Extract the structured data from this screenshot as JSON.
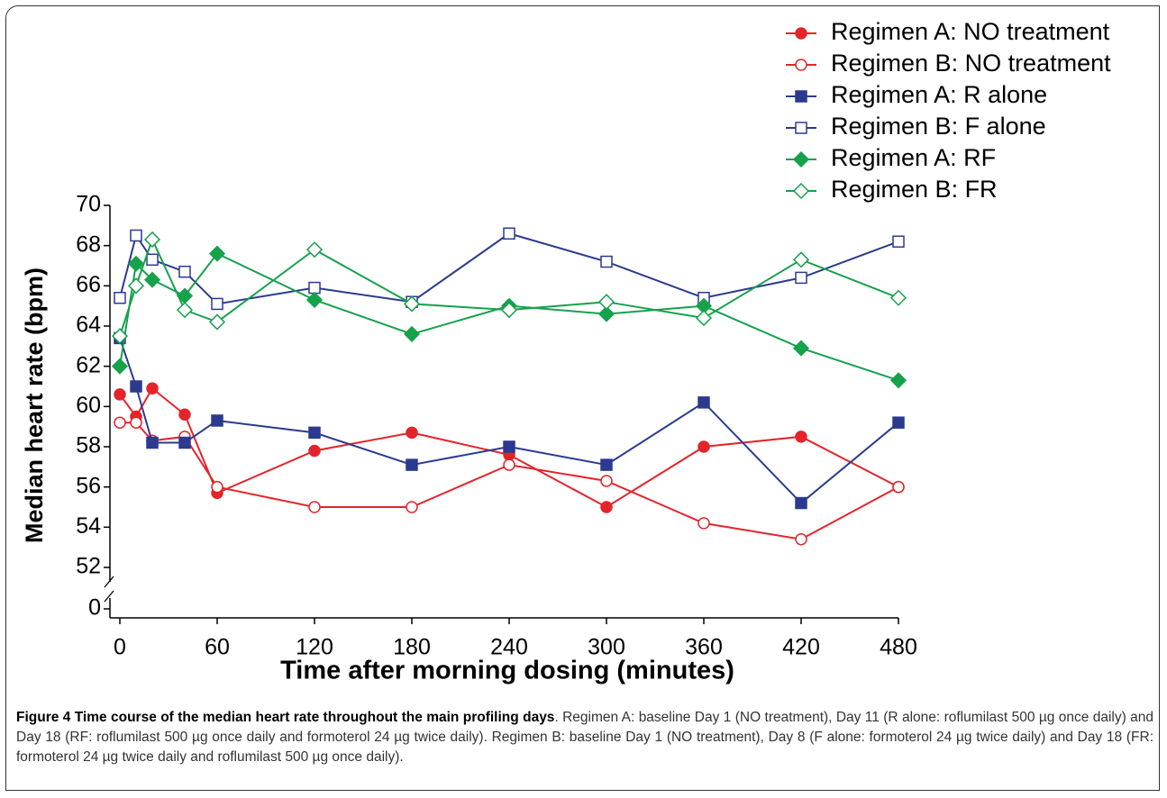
{
  "chart_data": {
    "type": "line",
    "x_label": "Time after morning dosing (minutes)",
    "y_label": "Median heart rate (bpm)",
    "x": [
      0,
      10,
      20,
      40,
      60,
      120,
      180,
      240,
      300,
      360,
      420,
      480
    ],
    "xlim": [
      -6,
      480
    ],
    "xticks": [
      0,
      60,
      120,
      180,
      240,
      300,
      360,
      420,
      480
    ],
    "ylim": [
      0,
      70
    ],
    "y_break": [
      0,
      52
    ],
    "yticks": [
      0,
      52,
      54,
      56,
      58,
      60,
      62,
      64,
      66,
      68,
      70
    ],
    "legend": "upper right",
    "series": [
      {
        "name": "Regimen A: NO treatment",
        "color": "#e3242b",
        "marker": "circle",
        "filled": true,
        "values": [
          60.6,
          59.5,
          60.9,
          59.6,
          55.7,
          57.8,
          58.7,
          57.6,
          55.0,
          58.0,
          58.5,
          56.0
        ]
      },
      {
        "name": "Regimen B: NO treatment",
        "color": "#e3242b",
        "marker": "circle",
        "filled": false,
        "values": [
          59.2,
          59.2,
          58.3,
          58.5,
          56.0,
          55.0,
          55.0,
          57.1,
          56.3,
          54.2,
          53.4,
          56.0
        ]
      },
      {
        "name": "Regimen A: R alone",
        "color": "#2b3a8f",
        "marker": "square",
        "filled": true,
        "values": [
          63.4,
          61.0,
          58.2,
          58.2,
          59.3,
          58.7,
          57.1,
          58.0,
          57.1,
          60.2,
          55.2,
          59.2
        ]
      },
      {
        "name": "Regimen B: F alone",
        "color": "#2b3a8f",
        "marker": "square",
        "filled": false,
        "values": [
          65.4,
          68.5,
          67.3,
          66.7,
          65.1,
          65.9,
          65.2,
          68.6,
          67.2,
          65.4,
          66.4,
          68.2
        ]
      },
      {
        "name": "Regimen A: RF",
        "color": "#16a14b",
        "marker": "diamond",
        "filled": true,
        "values": [
          62.0,
          67.1,
          66.3,
          65.5,
          67.6,
          65.3,
          63.6,
          65.0,
          64.6,
          65.0,
          62.9,
          61.3
        ]
      },
      {
        "name": "Regimen B: FR",
        "color": "#16a14b",
        "marker": "diamond",
        "filled": false,
        "values": [
          63.5,
          66.0,
          68.3,
          64.8,
          64.2,
          67.8,
          65.1,
          64.8,
          65.2,
          64.4,
          67.3,
          65.4
        ]
      }
    ]
  },
  "caption": {
    "label": "Figure 4 Time course of the median heart rate throughout the main profiling days",
    "text": ". Regimen A: baseline Day 1 (NO treatment), Day 11 (R alone: roflumilast 500 µg once daily) and Day 18 (RF: roflumilast 500 µg once daily and formoterol 24 µg twice daily). Regimen B: baseline Day 1 (NO treatment), Day 8 (F alone: formoterol 24 µg twice daily) and Day 18 (FR: formoterol 24 µg twice daily and roflumilast 500 µg once daily)."
  }
}
